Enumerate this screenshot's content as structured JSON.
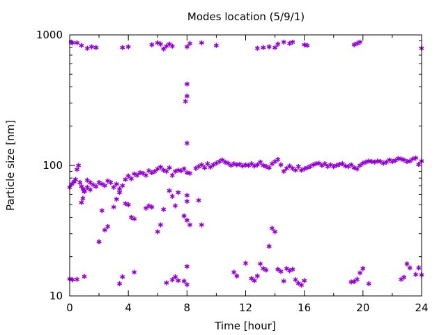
{
  "chart_data": {
    "type": "scatter",
    "title": "Modes location (5/9/1)",
    "xlabel": "Time [hour]",
    "ylabel": "Particle size [nm]",
    "xlim": [
      0,
      24
    ],
    "ylim": [
      10,
      1000
    ],
    "yscale": "log",
    "x_ticks": [
      0,
      4,
      8,
      12,
      16,
      20,
      24
    ],
    "x_tick_labels": [
      "0",
      "4",
      "8",
      "12",
      "16",
      "20",
      "24"
    ],
    "y_ticks": [
      10,
      100,
      1000
    ],
    "y_tick_labels": [
      "10",
      "100",
      "1000"
    ],
    "marker_color": "#9400d3",
    "grid": false,
    "legend": "none",
    "series": [
      {
        "x": [
          0.0,
          0.15,
          0.3,
          0.4,
          0.5,
          0.6,
          0.7,
          0.8,
          0.9,
          1.0,
          1.2,
          1.4,
          1.6,
          1.8,
          2.0,
          2.2,
          2.4,
          2.6,
          2.8,
          3.0,
          3.2,
          3.4,
          3.6,
          3.8,
          4.0,
          4.2,
          4.4,
          4.6,
          4.8,
          5.0,
          5.2,
          5.4,
          5.6,
          5.8,
          6.0,
          6.2,
          6.4,
          6.6,
          6.8,
          7.0,
          7.2,
          7.4,
          7.6,
          7.8,
          8.0,
          8.2,
          8.6,
          8.8,
          9.0,
          9.2,
          9.4,
          9.6,
          9.8,
          10.0,
          10.2,
          10.4,
          10.6,
          10.8,
          11.0,
          11.2,
          11.4,
          11.6,
          11.8,
          12.0,
          12.2,
          12.4,
          12.6,
          12.8,
          13.0,
          13.2,
          13.4,
          13.6,
          13.8,
          14.0,
          14.2,
          14.4,
          14.6,
          14.8,
          15.0,
          15.2,
          15.4,
          15.6,
          15.8,
          16.0,
          16.2,
          16.4,
          16.6,
          16.8,
          17.0,
          17.2,
          17.4,
          17.6,
          17.8,
          18.0,
          18.2,
          18.4,
          18.6,
          18.8,
          19.0,
          19.2,
          19.4,
          19.6,
          19.8,
          20.0,
          20.2,
          20.4,
          20.6,
          20.8,
          21.0,
          21.2,
          21.4,
          21.6,
          21.8,
          22.0,
          22.2,
          22.4,
          22.6,
          22.8,
          23.0,
          23.2,
          23.4,
          23.6,
          23.8,
          24.0
        ],
        "y": [
          68,
          72,
          75,
          78,
          93,
          100,
          74,
          69,
          66,
          63,
          77,
          74,
          71,
          69,
          74,
          72,
          70,
          76,
          74,
          68,
          72,
          66,
          70,
          78,
          83,
          79,
          86,
          84,
          88,
          87,
          84,
          91,
          88,
          90,
          94,
          97,
          92,
          90,
          96,
          84,
          90,
          92,
          91,
          94,
          88,
          87,
          95,
          98,
          101,
          96,
          103,
          97,
          101,
          104,
          107,
          110,
          106,
          104,
          100,
          103,
          101,
          102,
          99,
          101,
          100,
          103,
          99,
          101,
          106,
          100,
          98,
          96,
          103,
          107,
          111,
          101,
          90,
          95,
          99,
          95,
          92,
          98,
          92,
          94,
          96,
          98,
          101,
          103,
          104,
          100,
          103,
          98,
          101,
          98,
          100,
          102,
          103,
          99,
          98,
          101,
          96,
          94,
          100,
          104,
          106,
          108,
          107,
          106,
          108,
          107,
          104,
          106,
          110,
          107,
          109,
          113,
          112,
          110,
          107,
          108,
          112,
          114,
          102,
          108
        ]
      },
      {
        "x": [
          0.8,
          0.9,
          1.0,
          1.2,
          1.4,
          2.0,
          2.2,
          2.4,
          2.6,
          3.0,
          3.2,
          3.4,
          3.8,
          4.0,
          4.2,
          4.4,
          5.2,
          5.4,
          5.6,
          6.0,
          6.2,
          6.4,
          6.8,
          7.0,
          7.2,
          7.4,
          7.8,
          8.0,
          8.0,
          8.0,
          8.2,
          8.8,
          9.0
        ],
        "y": [
          52,
          56,
          64,
          68,
          65,
          26,
          45,
          32,
          34,
          48,
          55,
          62,
          51,
          50,
          40,
          39,
          47,
          49,
          48,
          31,
          35,
          46,
          64,
          58,
          49,
          62,
          41,
          59,
          53,
          38,
          35,
          54,
          35
        ]
      },
      {
        "x": [
          7.9,
          8.0,
          8.0,
          8.0
        ],
        "y": [
          310,
          340,
          420,
          148
        ]
      },
      {
        "x": [
          0.1,
          0.2,
          0.5,
          0.8,
          1.2,
          1.5,
          1.8,
          3.6,
          4.0,
          5.6,
          6.0,
          6.2,
          6.4,
          6.6,
          6.8,
          7.0,
          8.0,
          8.2,
          9.0,
          10.0,
          12.8,
          13.2,
          13.6,
          14.0,
          14.2,
          14.6,
          15.0,
          15.2,
          16.0,
          16.2,
          19.4,
          19.6,
          19.8,
          24.0
        ],
        "y": [
          880,
          870,
          870,
          830,
          790,
          810,
          800,
          800,
          810,
          840,
          870,
          850,
          780,
          820,
          850,
          820,
          810,
          860,
          870,
          830,
          790,
          800,
          810,
          800,
          850,
          880,
          860,
          880,
          840,
          830,
          840,
          860,
          880,
          790
        ]
      },
      {
        "x": [
          0.0,
          0.2,
          0.5,
          1.0,
          3.4,
          3.6,
          4.4,
          6.6,
          7.0,
          7.2,
          7.4,
          7.8,
          8.0,
          8.0,
          11.2,
          11.4,
          12.0,
          12.4,
          12.6,
          12.8,
          13.0,
          13.2,
          13.4,
          13.6,
          13.8,
          14.0,
          14.2,
          14.4,
          14.6,
          14.8,
          15.0,
          15.2,
          15.4,
          15.6,
          15.8,
          16.0,
          19.2,
          19.4,
          19.6,
          19.8,
          20.0,
          20.4,
          22.6,
          22.8,
          23.0,
          23.2,
          23.6,
          23.8,
          24.0
        ],
        "y": [
          13.5,
          13.3,
          13.4,
          14.1,
          12.4,
          14.0,
          15.2,
          12.6,
          13.3,
          14.0,
          13.1,
          13.0,
          16.8,
          12.2,
          15.2,
          14.2,
          17.8,
          13.6,
          13.1,
          14.2,
          17.6,
          16.2,
          15.8,
          24.0,
          33.0,
          31.0,
          16.0,
          15.4,
          13.0,
          16.2,
          15.6,
          16.0,
          13.3,
          12.5,
          12.1,
          13.1,
          12.8,
          12.9,
          13.4,
          15.0,
          16.2,
          12.4,
          13.4,
          13.9,
          17.6,
          16.4,
          14.6,
          16.4,
          14.5
        ]
      }
    ]
  }
}
